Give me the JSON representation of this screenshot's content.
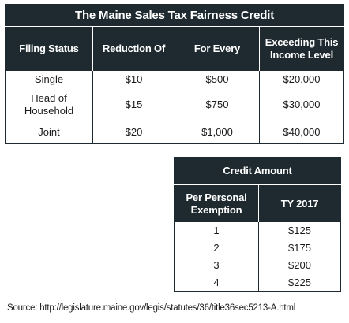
{
  "main_table": {
    "title": "The Maine Sales Tax Fairness Credit",
    "headers": [
      "Filing Status",
      "Reduction Of",
      "For Every",
      "Exceeding This Income Level"
    ],
    "rows": [
      {
        "filing_status": "Single",
        "reduction": "$10",
        "for_every": "$500",
        "income_level": "$20,000"
      },
      {
        "filing_status": "Head of Household",
        "reduction": "$15",
        "for_every": "$750",
        "income_level": "$30,000"
      },
      {
        "filing_status": "Joint",
        "reduction": "$20",
        "for_every": "$1,000",
        "income_level": "$40,000"
      }
    ]
  },
  "credit_table": {
    "title": "Credit Amount",
    "headers": [
      "Per Personal Exemption",
      "TY 2017"
    ],
    "rows": [
      {
        "exemption": "1",
        "amount": "$125"
      },
      {
        "exemption": "2",
        "amount": "$175"
      },
      {
        "exemption": "3",
        "amount": "$200"
      },
      {
        "exemption": "4",
        "amount": "$225"
      }
    ]
  },
  "source": "Source: http://legislature.maine.gov/legis/statutes/36/title36sec5213-A.html"
}
